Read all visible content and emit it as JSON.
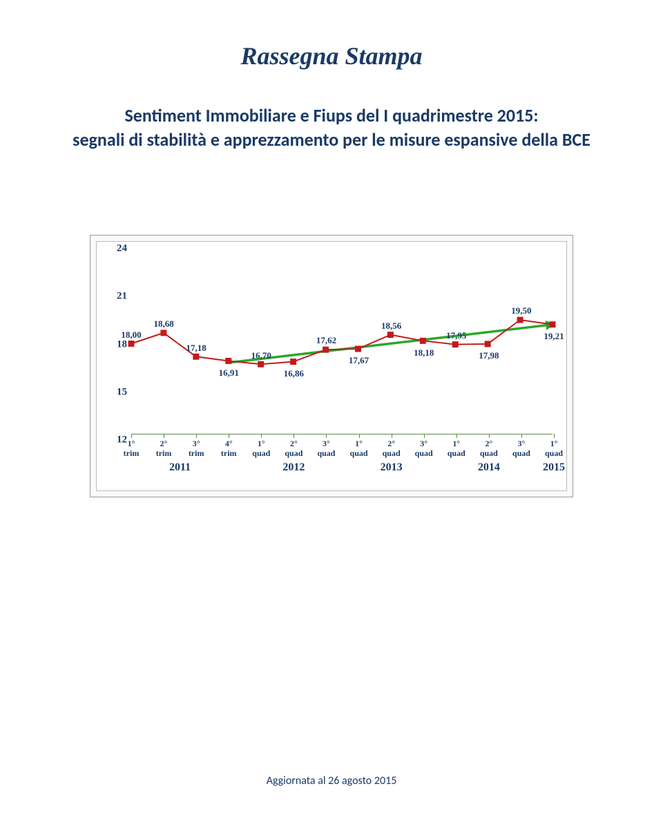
{
  "title": "Rassegna Stampa",
  "subtitle_line1": "Sentiment Immobiliare e Fiups del I quadrimestre 2015:",
  "subtitle_line2": "segnali di stabilità e apprezzamento per le misure espansive della BCE",
  "footer": "Aggiornata al 26 agosto 2015",
  "chart": {
    "type": "line",
    "background_color": "#ffffff",
    "text_color": "#1a3a66",
    "ylim": [
      12,
      24
    ],
    "yticks": [
      12,
      15,
      18,
      21,
      24
    ],
    "xticks": [
      {
        "top": "1°",
        "bot": "trim"
      },
      {
        "top": "2°",
        "bot": "trim"
      },
      {
        "top": "3°",
        "bot": "trim"
      },
      {
        "top": "4°",
        "bot": "trim"
      },
      {
        "top": "1°",
        "bot": "quad"
      },
      {
        "top": "2°",
        "bot": "quad"
      },
      {
        "top": "3°",
        "bot": "quad"
      },
      {
        "top": "1°",
        "bot": "quad"
      },
      {
        "top": "2°",
        "bot": "quad"
      },
      {
        "top": "3°",
        "bot": "quad"
      },
      {
        "top": "1°",
        "bot": "quad"
      },
      {
        "top": "2°",
        "bot": "quad"
      },
      {
        "top": "3°",
        "bot": "quad"
      },
      {
        "top": "1°",
        "bot": "quad"
      }
    ],
    "years": [
      {
        "label": "2011",
        "center_index": 1.5
      },
      {
        "label": "2012",
        "center_index": 5
      },
      {
        "label": "2013",
        "center_index": 8
      },
      {
        "label": "2014",
        "center_index": 11
      },
      {
        "label": "2015",
        "center_index": 13
      }
    ],
    "data_series": {
      "color": "#c41a1a",
      "marker_fill": "#ffffff",
      "marker_stroke": "#c41a1a",
      "marker_size": 4,
      "line_width": 2,
      "values": [
        18.0,
        18.68,
        17.18,
        16.91,
        16.7,
        16.86,
        17.62,
        17.67,
        18.56,
        18.18,
        17.95,
        17.98,
        19.5,
        19.21
      ]
    },
    "trend_line": {
      "color": "#2aa82a",
      "line_width": 3.5,
      "start_index": 3,
      "start_value": 16.8,
      "end_index": 13,
      "end_value": 19.21,
      "arrow": true
    },
    "value_labels": [
      {
        "idx": 0,
        "text": "18,00",
        "pos": "above"
      },
      {
        "idx": 1,
        "text": "18,68",
        "pos": "above"
      },
      {
        "idx": 2,
        "text": "17,18",
        "pos": "above"
      },
      {
        "idx": 3,
        "text": "16,91",
        "pos": "below"
      },
      {
        "idx": 4,
        "text": "16,70",
        "pos": "above"
      },
      {
        "idx": 5,
        "text": "16,86",
        "pos": "below"
      },
      {
        "idx": 6,
        "text": "17,62",
        "pos": "above"
      },
      {
        "idx": 7,
        "text": "17,67",
        "pos": "below"
      },
      {
        "idx": 8,
        "text": "18,56",
        "pos": "above"
      },
      {
        "idx": 9,
        "text": "18,18",
        "pos": "below"
      },
      {
        "idx": 10,
        "text": "17,95",
        "pos": "above"
      },
      {
        "idx": 11,
        "text": "17,98",
        "pos": "below"
      },
      {
        "idx": 12,
        "text": "19,50",
        "pos": "above"
      },
      {
        "idx": 13,
        "text": "19,21",
        "pos": "below"
      }
    ],
    "x_axis_position_value": 12.4,
    "axis_color": "#5b8a4a"
  }
}
